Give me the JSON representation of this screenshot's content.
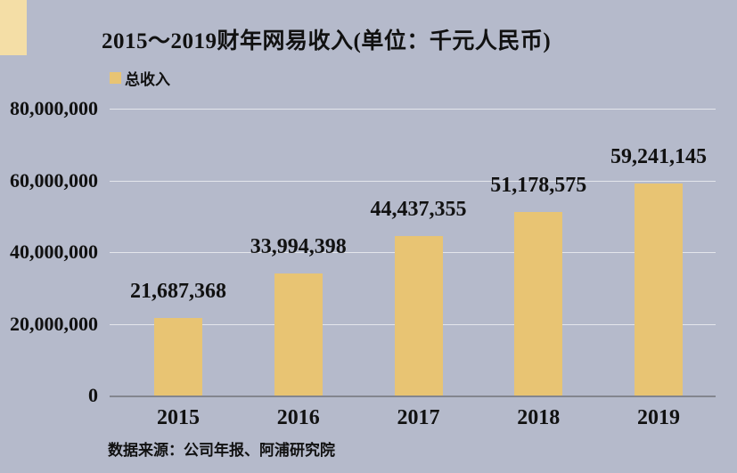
{
  "page": {
    "background_color": "#B5BACB",
    "decoration_color": "#F4DEA6",
    "text_color": "#111111"
  },
  "chart_data": {
    "type": "bar",
    "title": "2015～2019财年网易收入(单位：千元人民币)",
    "legend": [
      {
        "label": "总收入",
        "color": "#E8C473"
      }
    ],
    "legend_position": "top-left",
    "categories": [
      "2015",
      "2016",
      "2017",
      "2018",
      "2019"
    ],
    "values": [
      21687368,
      33994398,
      44437355,
      51178575,
      59241145
    ],
    "value_labels": [
      "21,687,368",
      "33,994,398",
      "44,437,355",
      "51,178,575",
      "59,241,145"
    ],
    "xlabel": "",
    "ylabel": "",
    "ylim": [
      0,
      80000000
    ],
    "yticks": [
      0,
      20000000,
      40000000,
      60000000,
      80000000
    ],
    "ytick_labels": [
      "0",
      "20,000,000",
      "40,000,000",
      "60,000,000",
      "80,000,000"
    ],
    "grid": "horizontal",
    "bar_color": "#E8C473",
    "gridline_color": "#E4E6EC",
    "axis_line_color": "#83858E",
    "source": "数据来源：公司年报、阿浦研究院"
  }
}
